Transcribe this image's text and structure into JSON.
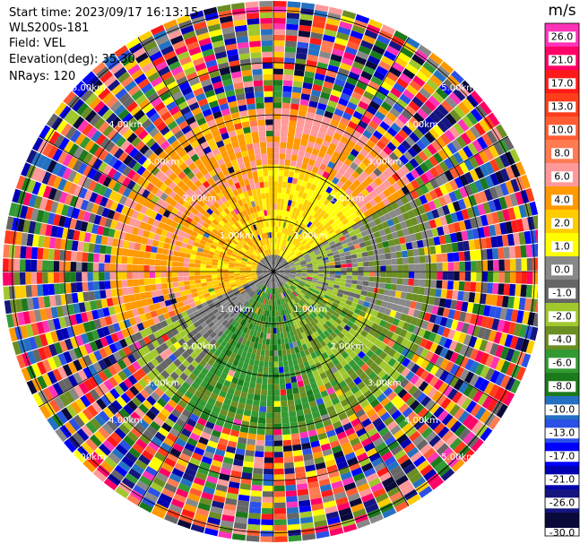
{
  "info": {
    "start_time": "Start time: 2023/09/17 16:13:15",
    "instrument": "WLS200s-181",
    "field": "Field: VEL",
    "elevation": "Elevation(deg): 35.30",
    "nrays": "NRays: 120"
  },
  "chart_data": {
    "type": "heatmap",
    "projection": "polar (PPI scan)",
    "field": "VEL",
    "units": "m/s",
    "nrays": 120,
    "elevation_deg": 35.3,
    "range_rings_km": [
      "1.00km",
      "2.00km",
      "3.00km",
      "4.00km",
      "5.00km"
    ],
    "colorbar": {
      "unit_label": "m/s",
      "tick_labels": [
        "26.0",
        "21.0",
        "17.0",
        "13.0",
        "10.0",
        "8.0",
        "6.0",
        "4.0",
        "2.0",
        "1.0",
        "0.0",
        "-1.0",
        "-2.0",
        "-4.0",
        "-6.0",
        "-8.0",
        "-10.0",
        "-13.0",
        "-17.0",
        "-21.0",
        "-26.0",
        "-30.0"
      ],
      "colors": [
        "#ff33b8",
        "#ff0066",
        "#ff1a1a",
        "#ff3d1a",
        "#ff5c33",
        "#ff7b52",
        "#ff9999",
        "#ff9900",
        "#ffcc00",
        "#ffff00",
        "#888888",
        "#666666",
        "#a0c82d",
        "#6b8e23",
        "#339933",
        "#1b7a1b",
        "#2471c3",
        "#2a50e6",
        "#0000ff",
        "#0000b0",
        "#151580",
        "#0a0a3a"
      ]
    },
    "region_pattern": {
      "near_range_to_about_2km_north_west": "1.0 to 6.0 (yellow/orange, positive)",
      "near_range_east": "-2.0 to -4.0 (light/olive green) and 0.0 (gray)",
      "near_range_south": "-6.0 to -8.0 (green)",
      "beyond_about_3km": "noisy, all colors"
    }
  }
}
